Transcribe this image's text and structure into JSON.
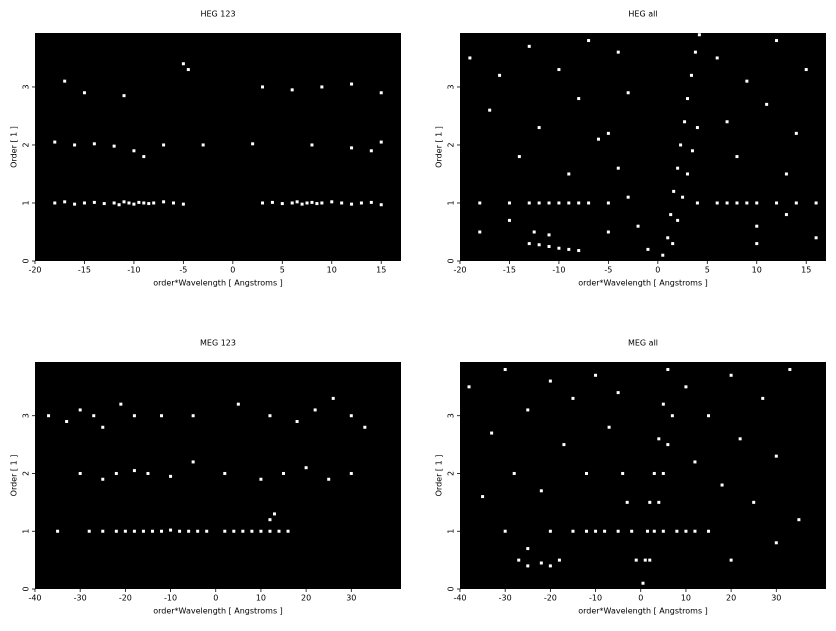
{
  "chart_data": [
    {
      "type": "scatter",
      "title": "HEG 123",
      "xlabel": "order*Wavelength [ Angstroms ]",
      "ylabel": "Order [ 1 ]",
      "color": "#ffffff",
      "xlim": [
        -20,
        17
      ],
      "ylim": [
        0,
        3.93
      ],
      "xticks": [
        -20,
        -15,
        -10,
        -5,
        0,
        5,
        10,
        15
      ],
      "yticks": [
        0,
        1,
        2,
        3
      ],
      "x": [
        -18,
        -17,
        -16,
        -15,
        -14,
        -13,
        -12,
        -11.5,
        -11,
        -10.5,
        -10,
        -9.5,
        -9,
        -8.5,
        -8,
        -7,
        -6,
        -5,
        3,
        4,
        5,
        6,
        6.5,
        7,
        7.5,
        8,
        8.5,
        9,
        10,
        11,
        12,
        13,
        14,
        15,
        -18,
        -16,
        -14,
        -12,
        -10,
        -9,
        -7,
        -3,
        2,
        8,
        12,
        14,
        15,
        -17,
        -15,
        -11,
        -5,
        -4.5,
        3,
        6,
        9,
        12,
        15
      ],
      "y": [
        1,
        1.02,
        0.98,
        1,
        1.01,
        0.99,
        1,
        0.97,
        1.02,
        1,
        0.98,
        1.01,
        1,
        0.99,
        1,
        1.02,
        1,
        0.98,
        1,
        1.01,
        0.99,
        1,
        1.02,
        0.98,
        1,
        1.01,
        0.99,
        1,
        1.02,
        1,
        0.98,
        1,
        1.01,
        0.97,
        2.05,
        2,
        2.02,
        1.98,
        1.9,
        1.8,
        2,
        2,
        2.02,
        2,
        1.95,
        1.9,
        2.05,
        3.1,
        2.9,
        2.85,
        3.4,
        3.3,
        3,
        2.95,
        3,
        3.05,
        2.9
      ]
    },
    {
      "type": "scatter",
      "title": "HEG all",
      "xlabel": "order*Wavelength [ Angstroms ]",
      "ylabel": "Order [ 1 ]",
      "color": "#ffffff",
      "xlim": [
        -20,
        17
      ],
      "ylim": [
        0,
        3.93
      ],
      "xticks": [
        -20,
        -15,
        -10,
        -5,
        0,
        5,
        10,
        15
      ],
      "yticks": [
        0,
        1,
        2,
        3
      ],
      "x": [
        0.5,
        1,
        1.3,
        1.6,
        2,
        2.3,
        2.7,
        3,
        3.4,
        3.8,
        4.2,
        1.5,
        2,
        2.5,
        3,
        3.5,
        4,
        -1,
        -2,
        -3,
        -4,
        -5,
        -13,
        -12,
        -11,
        -10,
        -9,
        -8,
        -12.5,
        -11,
        -18,
        -15,
        -13,
        -12,
        -11,
        -10,
        -9,
        -8,
        -7,
        -5,
        4,
        6,
        7,
        8,
        9,
        10,
        12,
        14,
        16,
        -19,
        -17,
        -16,
        -14,
        -13,
        -12,
        -10,
        -9,
        -8,
        -7,
        -6,
        -18,
        -15,
        6,
        7,
        8,
        9,
        10,
        11,
        12,
        13,
        14,
        15,
        16,
        10,
        13,
        -5,
        -3,
        -4
      ],
      "y": [
        0.1,
        0.4,
        0.8,
        1.2,
        1.6,
        2,
        2.4,
        2.8,
        3.2,
        3.6,
        3.9,
        0.3,
        0.7,
        1.1,
        1.5,
        1.9,
        2.3,
        0.2,
        0.6,
        1.1,
        1.6,
        2.2,
        0.3,
        0.28,
        0.25,
        0.22,
        0.2,
        0.18,
        0.5,
        0.45,
        1,
        1,
        1,
        1,
        1,
        1,
        1,
        1,
        1,
        1,
        1,
        1,
        1,
        1,
        1,
        1,
        1,
        1,
        1,
        3.5,
        2.6,
        3.2,
        1.8,
        3.7,
        2.3,
        3.3,
        1.5,
        2.8,
        3.8,
        2.1,
        0.5,
        0.7,
        3.5,
        2.4,
        1.8,
        3.1,
        0.6,
        2.7,
        3.8,
        1.5,
        2.2,
        3.3,
        0.4,
        0.3,
        0.8,
        0.5,
        2.9,
        3.6
      ]
    },
    {
      "type": "scatter",
      "title": "MEG 123",
      "xlabel": "order*Wavelength [ Angstroms ]",
      "ylabel": "Order [ 1 ]",
      "color": "#ffffff",
      "xlim": [
        -40,
        41
      ],
      "ylim": [
        0,
        3.93
      ],
      "xticks": [
        -40,
        -30,
        -20,
        -10,
        0,
        10,
        20,
        30
      ],
      "yticks": [
        0,
        1,
        2,
        3
      ],
      "x": [
        -35,
        -28,
        -25,
        -22,
        -20,
        -18,
        -16,
        -14,
        -12,
        -10,
        -8,
        -6,
        -4,
        -2,
        2,
        4,
        6,
        8,
        10,
        12,
        14,
        16,
        12,
        13,
        -30,
        -25,
        -22,
        -18,
        -15,
        -10,
        -5,
        2,
        10,
        15,
        20,
        25,
        30,
        -37,
        -33,
        -30,
        -27,
        -25,
        -21,
        -18,
        -12,
        -5,
        5,
        12,
        18,
        22,
        26,
        30,
        33
      ],
      "y": [
        1,
        1,
        1,
        1,
        1,
        1,
        1,
        1,
        1,
        1.02,
        1,
        1,
        1,
        1,
        1,
        1,
        1,
        1,
        1,
        1,
        1,
        1,
        1.2,
        1.3,
        2,
        1.9,
        2,
        2.05,
        2,
        1.95,
        2.2,
        2,
        1.9,
        2,
        2.1,
        1.9,
        2,
        3,
        2.9,
        3.1,
        3,
        2.8,
        3.2,
        3,
        3,
        3,
        3.2,
        3,
        2.9,
        3.1,
        3.3,
        3,
        2.8
      ]
    },
    {
      "type": "scatter",
      "title": "MEG all",
      "xlabel": "order*Wavelength [ Angstroms ]",
      "ylabel": "Order [ 1 ]",
      "color": "#ffffff",
      "xlim": [
        -40,
        41
      ],
      "ylim": [
        0,
        3.93
      ],
      "xticks": [
        -40,
        -30,
        -20,
        -10,
        0,
        10,
        20,
        30
      ],
      "yticks": [
        0,
        1,
        2,
        3
      ],
      "x": [
        0.5,
        1,
        1.5,
        2,
        3,
        4,
        5,
        6,
        2,
        3,
        4,
        5,
        6,
        7,
        -1,
        -2,
        -3,
        -4,
        -27,
        -25,
        -22,
        -20,
        -18,
        -25,
        -30,
        -20,
        -15,
        -12,
        -10,
        -8,
        -5,
        5,
        8,
        10,
        12,
        15,
        -38,
        -35,
        -33,
        -30,
        -28,
        -25,
        -22,
        -20,
        -17,
        -15,
        -12,
        -10,
        -7,
        -5,
        10,
        12,
        15,
        18,
        20,
        22,
        25,
        27,
        30,
        33,
        35,
        20,
        30
      ],
      "y": [
        0.1,
        0.5,
        1,
        1.5,
        2,
        2.6,
        3.2,
        3.8,
        0.5,
        1,
        1.5,
        2,
        2.5,
        3,
        0.5,
        1,
        1.5,
        2,
        0.5,
        0.4,
        0.45,
        0.4,
        0.5,
        0.7,
        1,
        1,
        1,
        1,
        1,
        1,
        1,
        1,
        1,
        1,
        1,
        1,
        3.5,
        1.6,
        2.7,
        3.8,
        2,
        3.1,
        1.7,
        3.6,
        2.5,
        3.3,
        2,
        3.7,
        2.8,
        3.4,
        3.5,
        2.2,
        3,
        1.8,
        3.7,
        2.6,
        1.5,
        3.3,
        2.3,
        3.8,
        1.2,
        0.5,
        0.8
      ]
    }
  ]
}
